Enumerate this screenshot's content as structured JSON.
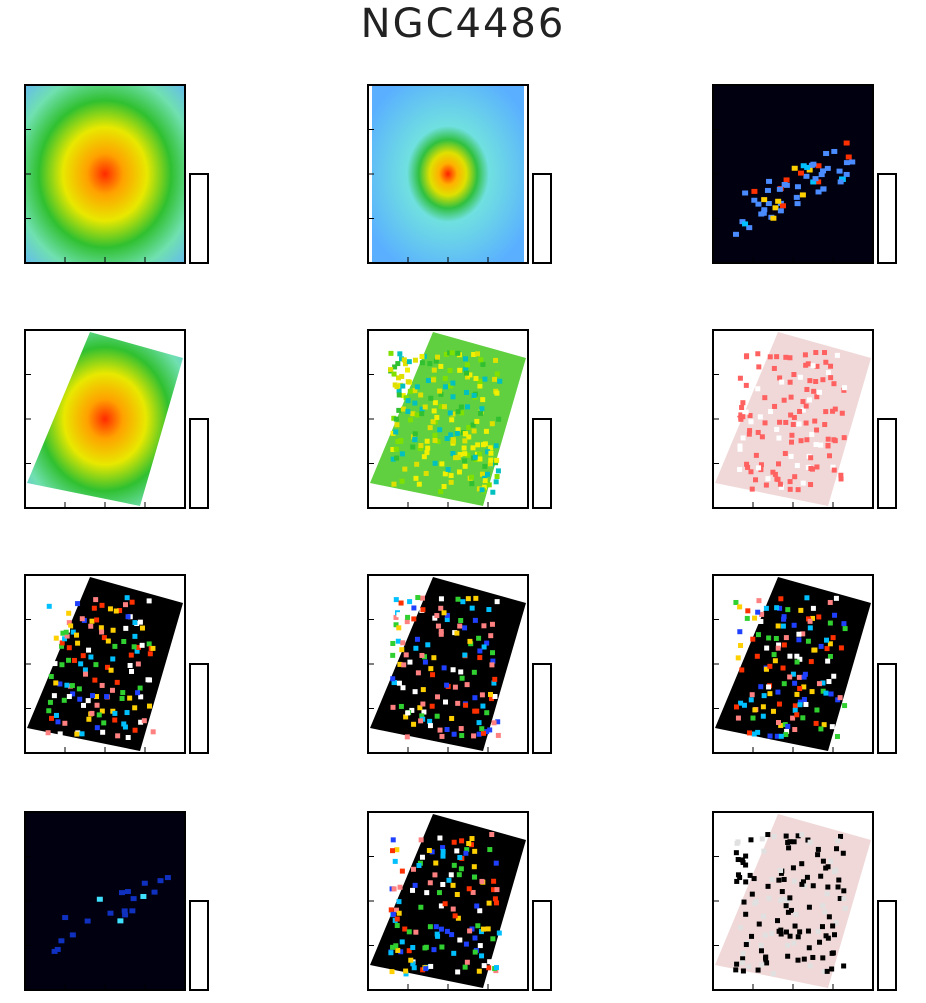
{
  "title": "NGC4486"
}
